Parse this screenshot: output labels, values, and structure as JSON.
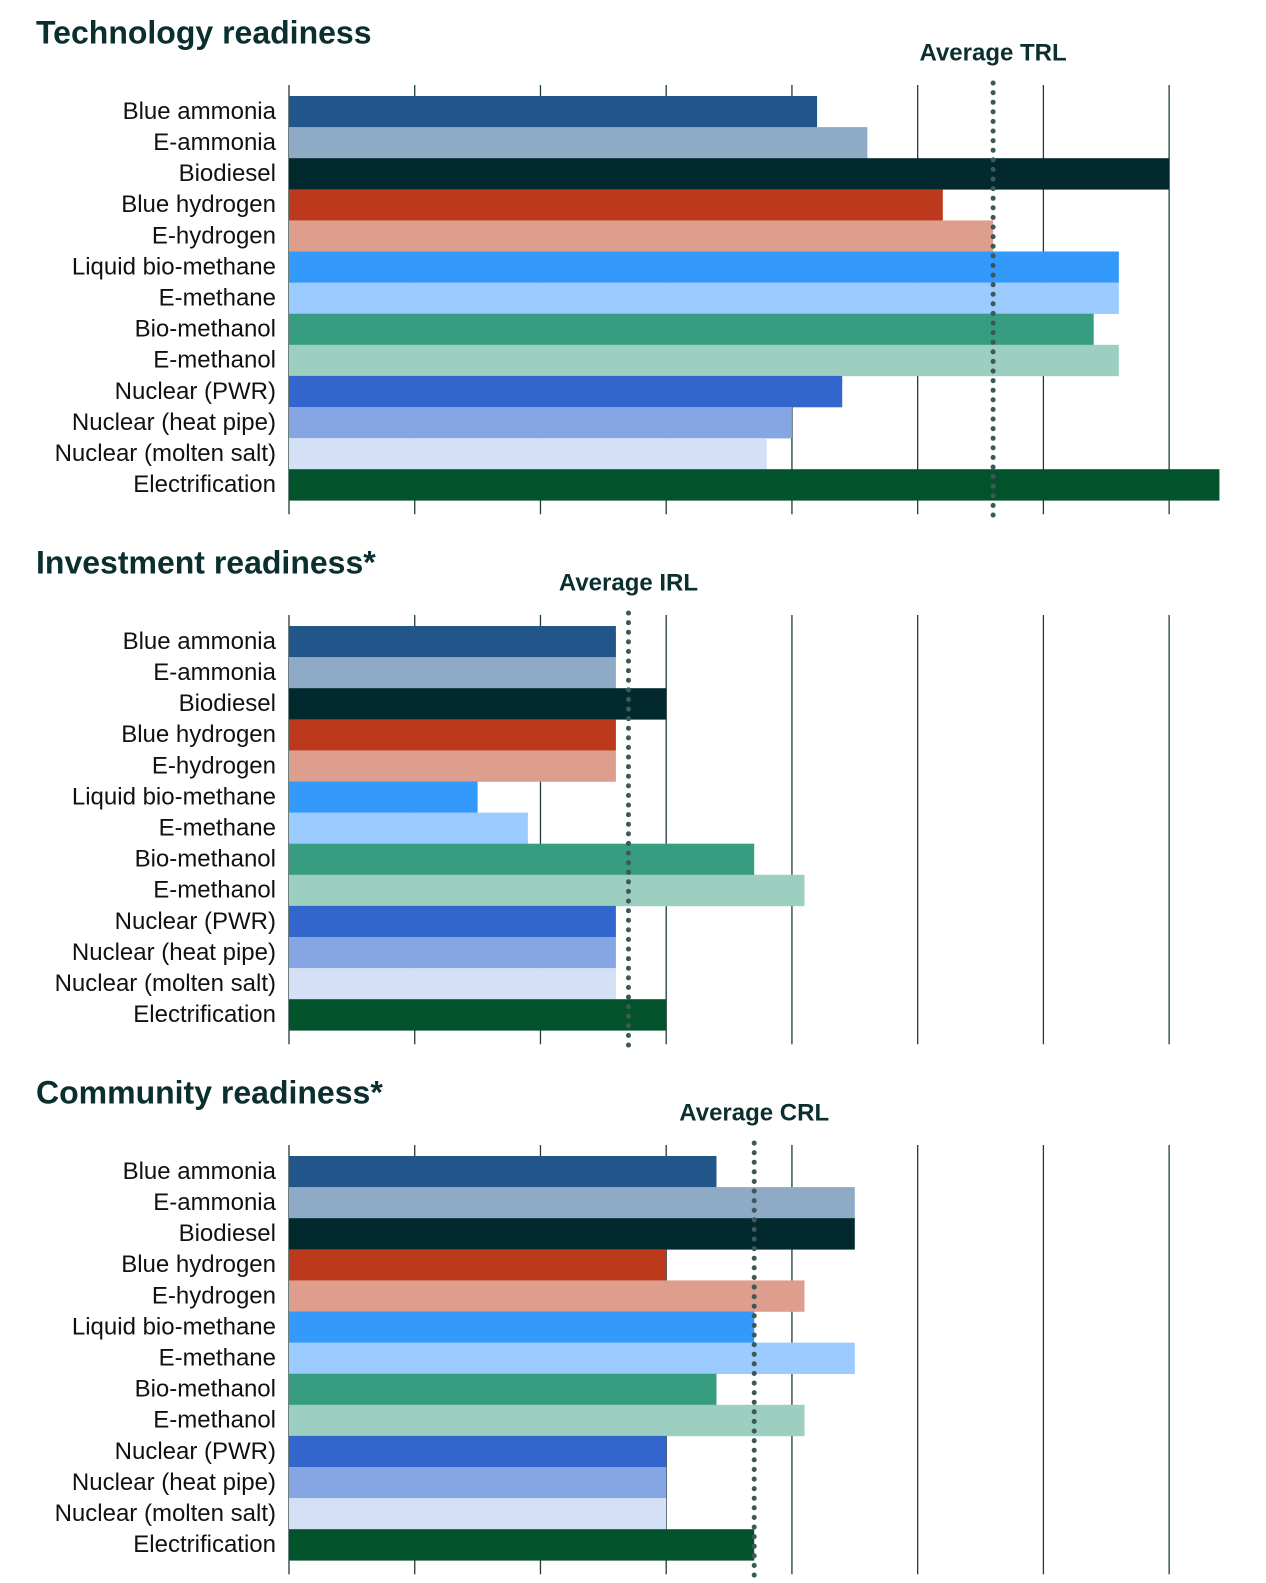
{
  "chart_data": [
    {
      "type": "bar",
      "orientation": "horizontal",
      "title": "Technology readiness",
      "categories": [
        "Blue ammonia",
        "E-ammonia",
        "Biodiesel",
        "Blue hydrogen",
        "E-hydrogen",
        "Liquid bio-methane",
        "E-methane",
        "Bio-methanol",
        "E-methanol",
        "Nuclear (PWR)",
        "Nuclear (heat pipe)",
        "Nuclear (molten salt)",
        "Electrification"
      ],
      "values": [
        5.2,
        5.6,
        8,
        6.2,
        6.6,
        7.6,
        7.6,
        7.4,
        7.6,
        5.4,
        5.0,
        4.8,
        8.4
      ],
      "colors": [
        "#22558a",
        "#8faac4",
        "#022a2e",
        "#bc391c",
        "#de9e8e",
        "#3399fa",
        "#9ccbff",
        "#379d80",
        "#9ccfbf",
        "#3366cc",
        "#85a6e3",
        "#d4e0f5",
        "#02532c"
      ],
      "average": {
        "label": "Average TRL",
        "value": 6.6
      },
      "xlim": [
        1,
        8.5
      ],
      "xticks": [
        1,
        2,
        3,
        4,
        5,
        6,
        7,
        8
      ],
      "grid": true
    },
    {
      "type": "bar",
      "orientation": "horizontal",
      "title": "Investment readiness*",
      "categories": [
        "Blue ammonia",
        "E-ammonia",
        "Biodiesel",
        "Blue hydrogen",
        "E-hydrogen",
        "Liquid bio-methane",
        "E-methane",
        "Bio-methanol",
        "E-methanol",
        "Nuclear (PWR)",
        "Nuclear (heat pipe)",
        "Nuclear (molten salt)",
        "Electrification"
      ],
      "values": [
        3.6,
        3.6,
        4,
        3.6,
        3.6,
        2.5,
        2.9,
        4.7,
        5.1,
        3.6,
        3.6,
        3.6,
        4
      ],
      "colors": [
        "#22558a",
        "#8faac4",
        "#022a2e",
        "#bc391c",
        "#de9e8e",
        "#3399fa",
        "#9ccbff",
        "#379d80",
        "#9ccfbf",
        "#3366cc",
        "#85a6e3",
        "#d4e0f5",
        "#02532c"
      ],
      "average": {
        "label": "Average IRL",
        "value": 3.7
      },
      "xlim": [
        1,
        8.5
      ],
      "xticks": [
        1,
        2,
        3,
        4,
        5,
        6,
        7,
        8
      ],
      "grid": true
    },
    {
      "type": "bar",
      "orientation": "horizontal",
      "title": "Community readiness*",
      "categories": [
        "Blue ammonia",
        "E-ammonia",
        "Biodiesel",
        "Blue hydrogen",
        "E-hydrogen",
        "Liquid bio-methane",
        "E-methane",
        "Bio-methanol",
        "E-methanol",
        "Nuclear (PWR)",
        "Nuclear (heat pipe)",
        "Nuclear (molten salt)",
        "Electrification"
      ],
      "values": [
        4.4,
        5.5,
        5.5,
        4.0,
        5.1,
        4.7,
        5.5,
        4.4,
        5.1,
        4.0,
        4.0,
        4.0,
        4.7
      ],
      "colors": [
        "#22558a",
        "#8faac4",
        "#022a2e",
        "#bc391c",
        "#de9e8e",
        "#3399fa",
        "#9ccbff",
        "#379d80",
        "#9ccfbf",
        "#3366cc",
        "#85a6e3",
        "#d4e0f5",
        "#02532c"
      ],
      "average": {
        "label": "Average CRL",
        "value": 4.7
      },
      "xlim": [
        1,
        8.5
      ],
      "xticks": [
        1,
        2,
        3,
        4,
        5,
        6,
        7,
        8
      ],
      "grid": true
    }
  ]
}
